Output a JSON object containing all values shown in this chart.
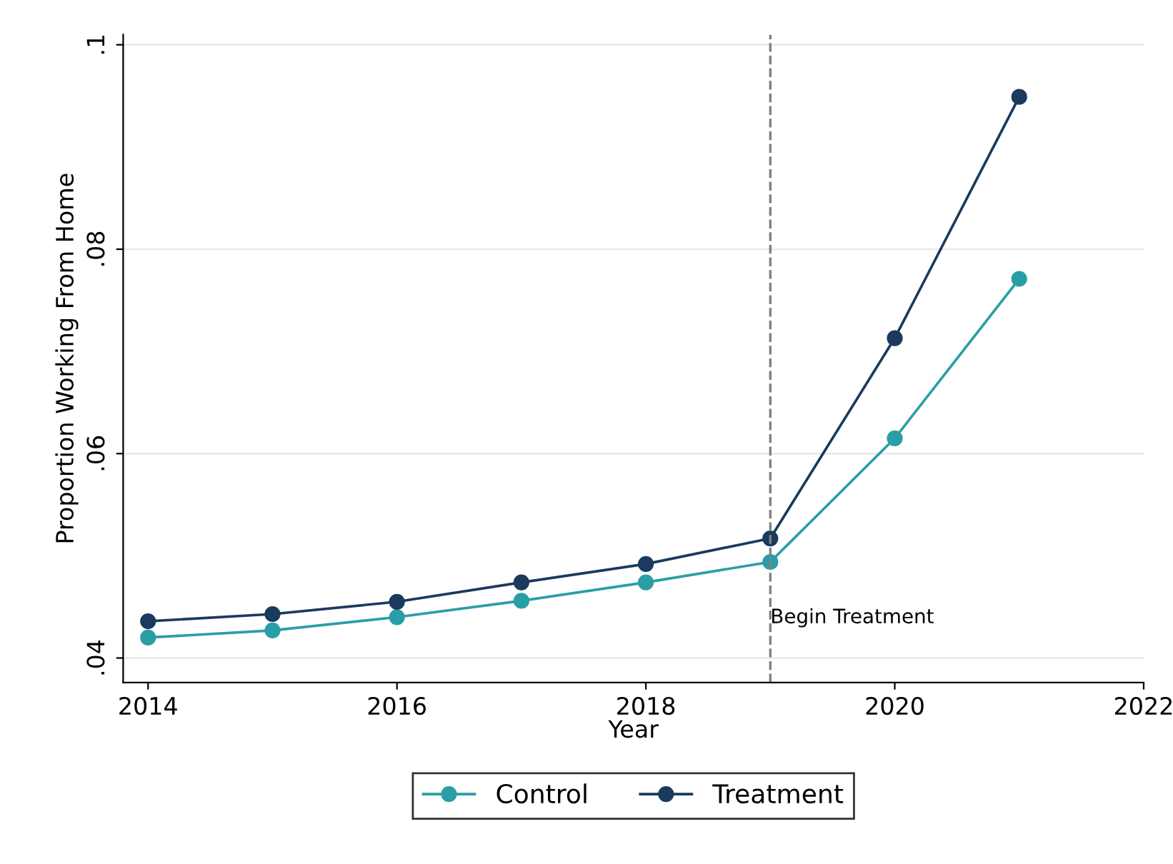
{
  "chart_data": {
    "type": "line",
    "xlabel": "Year",
    "ylabel": "Proportion Working From Home",
    "x": [
      2014,
      2015,
      2016,
      2017,
      2018,
      2019,
      2020,
      2021
    ],
    "series": [
      {
        "name": "Control",
        "color": "#2a9ea6",
        "values": [
          0.042,
          0.0427,
          0.044,
          0.0456,
          0.0474,
          0.0494,
          0.0615,
          0.0771
        ]
      },
      {
        "name": "Treatment",
        "color": "#1a3a5e",
        "values": [
          0.0436,
          0.0443,
          0.0455,
          0.0474,
          0.0492,
          0.0517,
          0.0713,
          0.0949
        ]
      }
    ],
    "xlim": [
      2013.8,
      2022
    ],
    "xticks": [
      2014,
      2016,
      2018,
      2020,
      2022
    ],
    "ylim": [
      0.0376,
      0.101
    ],
    "yticks": [
      {
        "value": 0.04,
        "label": ".04"
      },
      {
        "value": 0.06,
        "label": ".06"
      },
      {
        "value": 0.08,
        "label": ".08"
      },
      {
        "value": 0.1,
        "label": ".1"
      }
    ],
    "ref_lines": [
      {
        "axis": "x",
        "value": 2019,
        "label": "Begin Treatment",
        "color": "#808080",
        "line_style": "dashed"
      }
    ],
    "grid": "y",
    "legend": "bottom",
    "marker": "circle",
    "line_style": "solid"
  }
}
